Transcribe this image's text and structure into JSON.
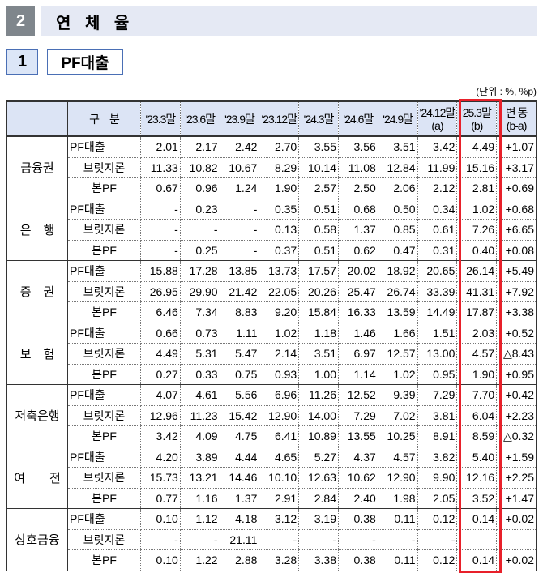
{
  "section": {
    "number": "2",
    "title": "연 체 율"
  },
  "subsection": {
    "number": "1",
    "title": "PF대출"
  },
  "unit": "(단위 : %, %p)",
  "table": {
    "header_label": "구　분",
    "columns": [
      "'23.3말",
      "'23.6말",
      "'23.9말",
      "'23.12말",
      "'24.3말",
      "'24.6말",
      "'24.9말",
      "'24.12말\n(a)",
      "25.3말\n(b)",
      "변 동\n(b-a)"
    ],
    "highlight_color": "#e8202a",
    "groups": [
      {
        "name": "금융권",
        "rows": [
          {
            "label": "PF대출",
            "values": [
              "2.01",
              "2.17",
              "2.42",
              "2.70",
              "3.55",
              "3.56",
              "3.51",
              "3.42",
              "4.49",
              "+1.07"
            ]
          },
          {
            "label": "브릿지론",
            "values": [
              "11.33",
              "10.82",
              "10.67",
              "8.29",
              "10.14",
              "11.08",
              "12.84",
              "11.99",
              "15.16",
              "+3.17"
            ]
          },
          {
            "label": "본PF",
            "values": [
              "0.67",
              "0.96",
              "1.24",
              "1.90",
              "2.57",
              "2.50",
              "2.06",
              "2.12",
              "2.81",
              "+0.69"
            ]
          }
        ]
      },
      {
        "name": "은　행",
        "rows": [
          {
            "label": "PF대출",
            "values": [
              "-",
              "0.23",
              "-",
              "0.35",
              "0.51",
              "0.68",
              "0.50",
              "0.34",
              "1.02",
              "+0.68"
            ]
          },
          {
            "label": "브릿지론",
            "values": [
              "-",
              "-",
              "-",
              "0.13",
              "0.58",
              "1.37",
              "0.85",
              "0.61",
              "7.26",
              "+6.65"
            ]
          },
          {
            "label": "본PF",
            "values": [
              "-",
              "0.25",
              "-",
              "0.37",
              "0.51",
              "0.62",
              "0.47",
              "0.31",
              "0.40",
              "+0.08"
            ]
          }
        ]
      },
      {
        "name": "증　권",
        "rows": [
          {
            "label": "PF대출",
            "values": [
              "15.88",
              "17.28",
              "13.85",
              "13.73",
              "17.57",
              "20.02",
              "18.92",
              "20.65",
              "26.14",
              "+5.49"
            ]
          },
          {
            "label": "브릿지론",
            "values": [
              "26.95",
              "29.90",
              "21.42",
              "22.05",
              "20.26",
              "25.47",
              "26.74",
              "33.39",
              "41.31",
              "+7.92"
            ]
          },
          {
            "label": "본PF",
            "values": [
              "6.46",
              "7.34",
              "8.83",
              "9.20",
              "15.84",
              "16.33",
              "13.59",
              "14.49",
              "17.87",
              "+3.38"
            ]
          }
        ]
      },
      {
        "name": "보　험",
        "rows": [
          {
            "label": "PF대출",
            "values": [
              "0.66",
              "0.73",
              "1.11",
              "1.02",
              "1.18",
              "1.46",
              "1.66",
              "1.51",
              "2.03",
              "+0.52"
            ]
          },
          {
            "label": "브릿지론",
            "values": [
              "4.49",
              "5.31",
              "5.47",
              "2.14",
              "3.51",
              "6.97",
              "12.57",
              "13.00",
              "4.57",
              "△8.43"
            ]
          },
          {
            "label": "본PF",
            "values": [
              "0.27",
              "0.33",
              "0.75",
              "0.93",
              "1.00",
              "1.14",
              "1.02",
              "0.95",
              "1.90",
              "+0.95"
            ]
          }
        ]
      },
      {
        "name": "저축은행",
        "rows": [
          {
            "label": "PF대출",
            "values": [
              "4.07",
              "4.61",
              "5.56",
              "6.96",
              "11.26",
              "12.52",
              "9.39",
              "7.29",
              "7.70",
              "+0.42"
            ]
          },
          {
            "label": "브릿지론",
            "values": [
              "12.96",
              "11.23",
              "15.42",
              "12.90",
              "14.00",
              "7.29",
              "7.02",
              "3.81",
              "6.04",
              "+2.23"
            ]
          },
          {
            "label": "본PF",
            "values": [
              "3.42",
              "4.09",
              "4.75",
              "6.41",
              "10.89",
              "13.55",
              "10.25",
              "8.91",
              "8.59",
              "△0.32"
            ]
          }
        ]
      },
      {
        "name": "여　　전",
        "rows": [
          {
            "label": "PF대출",
            "values": [
              "4.20",
              "3.89",
              "4.44",
              "4.65",
              "5.27",
              "4.37",
              "4.57",
              "3.82",
              "5.40",
              "+1.59"
            ]
          },
          {
            "label": "브릿지론",
            "values": [
              "15.73",
              "13.21",
              "14.46",
              "10.10",
              "12.63",
              "10.62",
              "12.90",
              "9.90",
              "12.16",
              "+2.25"
            ]
          },
          {
            "label": "본PF",
            "values": [
              "0.77",
              "1.16",
              "1.37",
              "2.91",
              "2.84",
              "2.40",
              "1.98",
              "2.05",
              "3.52",
              "+1.47"
            ]
          }
        ]
      },
      {
        "name": "상호금융",
        "rows": [
          {
            "label": "PF대출",
            "values": [
              "0.10",
              "1.12",
              "4.18",
              "3.12",
              "3.19",
              "0.38",
              "0.11",
              "0.12",
              "0.14",
              "+0.02"
            ]
          },
          {
            "label": "브릿지론",
            "values": [
              "-",
              "-",
              "21.11",
              "-",
              "-",
              "-",
              "-",
              "-",
              "",
              ""
            ]
          },
          {
            "label": "본PF",
            "values": [
              "0.10",
              "1.22",
              "2.88",
              "3.28",
              "3.38",
              "0.38",
              "0.11",
              "0.12",
              "0.14",
              "+0.02"
            ]
          }
        ]
      }
    ]
  }
}
